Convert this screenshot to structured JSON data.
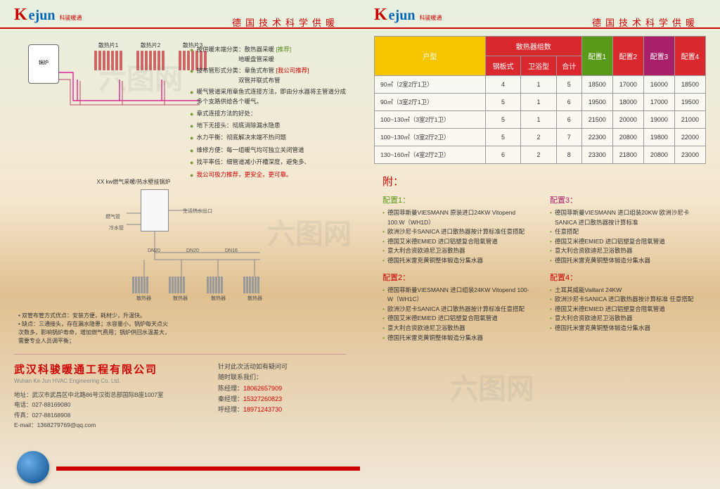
{
  "logo": {
    "first": "K",
    "rest": "ejun",
    "sub": "科骏暖通"
  },
  "tagline": "德国技术科学供暖",
  "diagram1": {
    "boiler": "锅炉",
    "radiators": [
      "散热片1",
      "散热片2",
      "散热片3"
    ]
  },
  "bullets": [
    {
      "prefix": "按供暖末端分类：",
      "main": "散热器采暖",
      "tag": "[推荐]",
      "tagClass": "highlight-green",
      "more": "地暖盘管采暖"
    },
    {
      "prefix": "按布管形式分类：",
      "main": "章鱼式布管",
      "tag": "[我公司推荐]",
      "tagClass": "highlight-red",
      "more": "双管并联式布管"
    },
    {
      "prefix": "",
      "main": "暖气管道采用章鱼式连接方法，即由分水器将主管道分成多个支路供给各个暖气。"
    },
    {
      "prefix": "",
      "main": "章式连接方法的好处："
    },
    {
      "prefix": "",
      "main": "地下无接头：彻底消除漏水隐患"
    },
    {
      "prefix": "",
      "main": "水力平衡：彻底解决末端不热问题"
    },
    {
      "prefix": "",
      "main": "维修方便：每一组暖气均可独立关闭管道"
    },
    {
      "prefix": "",
      "main": "找平率低：细管道减小开槽深度，避免多、"
    },
    {
      "prefix": "",
      "main": "我公司极力推荐，更安全，更可靠。",
      "mainClass": "highlight-red"
    }
  ],
  "diagram2": {
    "title": "XX kw燃气采暖/热水壁挂锅炉",
    "labels": {
      "gas": "燃气管",
      "cold": "冷水管",
      "hot": "生活热水出口",
      "dn20": "DN20",
      "dn16": "DN16",
      "rad": "散热器"
    }
  },
  "footnote": "• 双管布管方式优点：安装方便，耗材少，升温快。\n• 缺点：三通接头，存在漏水隐患；水容量小，锅炉每天点火次数多，影响锅炉寿命，增加燃气费用；锅炉供回水温差大，需要专业人员调平衡；",
  "company": {
    "name_cn": "武汉科骏暖通工程有限公司",
    "name_en": "Wuhan Ke Jun HVAC Engineering Co. Ltd.",
    "addr": "地址：武汉市武昌区中北路86号汉街总部国际B座1007室",
    "tel": "电话：027-88169080",
    "fax": "传真：027-88168908",
    "email": "E-mail：1368279769@qq.com",
    "prompt1": "针对此次活动如有疑问可",
    "prompt2": "随时联系我们：",
    "contacts": [
      {
        "name": "陈经理：",
        "phone": "18062657909"
      },
      {
        "name": "秦经理：",
        "phone": "15327260823"
      },
      {
        "name": "呼经理：",
        "phone": "18971243730"
      }
    ]
  },
  "table": {
    "h_type": "户型",
    "h_group": "散热器组数",
    "h_sub": [
      "钢板式",
      "卫浴型",
      "合计"
    ],
    "h_cfg": [
      "配置1",
      "配置2",
      "配置3",
      "配置4"
    ],
    "rows": [
      {
        "type": "90㎡（2室2厅1卫）",
        "v": [
          "4",
          "1",
          "5",
          "18500",
          "17000",
          "16000",
          "18500"
        ]
      },
      {
        "type": "90㎡（3室2厅1卫）",
        "v": [
          "5",
          "1",
          "6",
          "19500",
          "18000",
          "17000",
          "19500"
        ]
      },
      {
        "type": "100~130㎡（3室2厅1卫）",
        "v": [
          "5",
          "1",
          "6",
          "21500",
          "20000",
          "19000",
          "21000"
        ]
      },
      {
        "type": "100~130㎡（3室2厅2卫）",
        "v": [
          "5",
          "2",
          "7",
          "22300",
          "20800",
          "19800",
          "22000"
        ]
      },
      {
        "type": "130~160㎡（4室2厅2卫）",
        "v": [
          "6",
          "2",
          "8",
          "23300",
          "21800",
          "20800",
          "23000"
        ]
      }
    ]
  },
  "appendix_title": "附：",
  "configs": {
    "c1": {
      "title": "配置1：",
      "items": [
        "德国菲斯曼VIESMANN  原装进口24KW  Vitopend 100.W（WH1D）",
        "欧洲沙尼卡SANICA 进口散热器按计算标准任意搭配",
        "德国艾米德EMIED 进口铝塑复合阻氧管道",
        "意大利合资欧迪尼卫浴散热器",
        "德国托米雷克黄铜整体锻造分集水器"
      ]
    },
    "c3": {
      "title": "配置3：",
      "items": [
        "德国菲斯曼VIESMANN  进口组装20KW 欧洲沙尼卡SANICA 进口散热器按计算标准",
        "任意搭配",
        "德国艾米德EMIED 进口铝塑复合阻氧管道",
        "意大利合资欧迪尼卫浴散热器",
        "德国托米雷克黄铜整体锻造分集水器"
      ]
    },
    "c2": {
      "title": "配置2：",
      "items": [
        "德国菲斯曼VIESMANN  进口组装24KW  Vitopend 100-W（WH1C）",
        "欧洲沙尼卡SANICA 进口散热器按计算标准任意搭配",
        "德国艾米德EMIED 进口铝塑复合阻氧管道",
        "意大利合资欧迪尼卫浴散热器",
        "德国托米雷克黄铜整体锻造分集水器"
      ]
    },
    "c4": {
      "title": "配置4：",
      "items": [
        "土耳其威能Vaillant  24KW",
        "欧洲沙尼卡SANICA 进口散热器按计算标准 任意搭配",
        "德国艾米德EMIED 进口铝塑复合阻氧管道",
        "意大利合资欧迪尼卫浴散热器",
        "德国托米雷克黄铜整体锻造分集水器"
      ]
    }
  }
}
